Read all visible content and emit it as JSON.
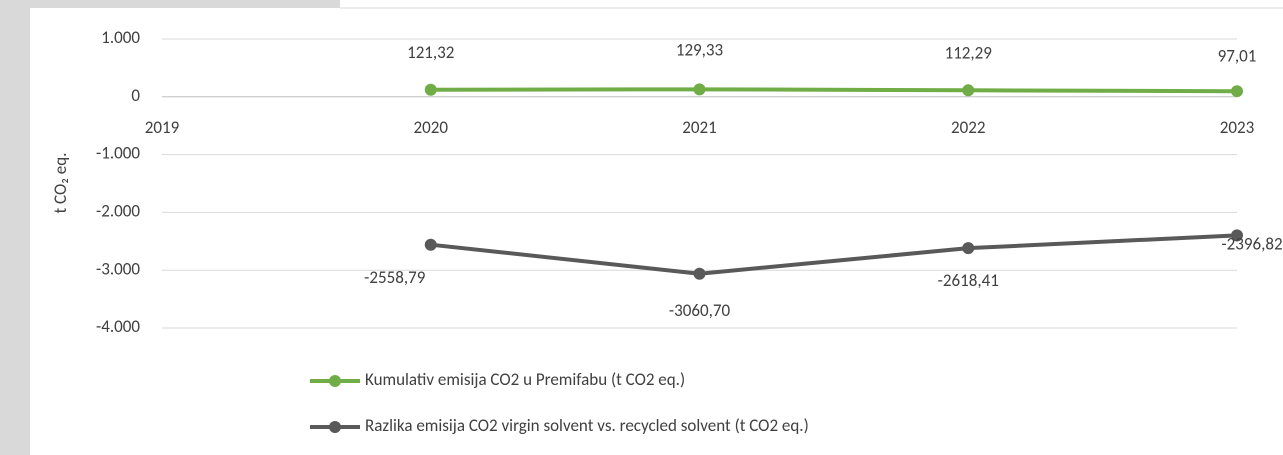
{
  "chart_data": {
    "type": "line",
    "y_label": "t CO₂ eq.",
    "x": [
      2019,
      2020,
      2021,
      2022,
      2023
    ],
    "xlim": [
      2019,
      2023
    ],
    "xticks": [
      2019,
      2020,
      2021,
      2022,
      2023
    ],
    "ylim": [
      -4000,
      1000
    ],
    "yticks": [
      {
        "value": -4000,
        "label": "-4.000"
      },
      {
        "value": -3000,
        "label": "-3.000"
      },
      {
        "value": -2000,
        "label": "-2.000"
      },
      {
        "value": -1000,
        "label": "-1.000"
      },
      0,
      {
        "value": 1000,
        "label": "1.000"
      }
    ],
    "grid": true,
    "legend": "bottom",
    "series": [
      {
        "name": "Kumulativ emisija CO2 u Premifabu (t CO2 eq.)",
        "color": "#70ad47",
        "values": [
          null,
          121.32,
          129.33,
          112.29,
          97.01
        ],
        "value_labels": [
          null,
          "121,32",
          "129,33",
          "112,29",
          "97,01"
        ]
      },
      {
        "name": "Razlika emisija CO2 virgin solvent vs. recycled solvent (t CO2 eq.)",
        "color": "#595959",
        "values": [
          null,
          -2558.79,
          -3060.7,
          -2618.41,
          -2396.82
        ],
        "value_labels": [
          null,
          "-2558,79",
          "-3060,70",
          "-2618,41",
          "-2396,82"
        ]
      }
    ]
  }
}
